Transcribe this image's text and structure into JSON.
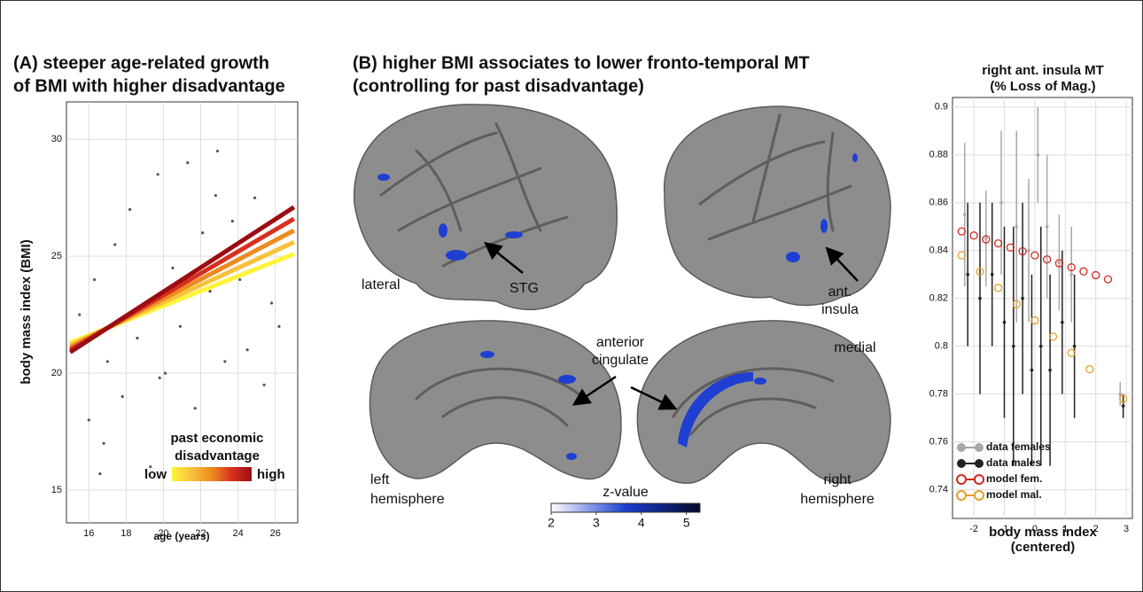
{
  "chart_data": [
    {
      "type": "line",
      "title": [
        "(A) steeper age-related growth",
        "of BMI with higher disadvantage"
      ],
      "x_label": "age (years)",
      "y_label": "body mass index (BMI)",
      "xlim": [
        14.8,
        27.2
      ],
      "ylim": [
        13.6,
        31.6
      ],
      "xticks": [
        16,
        18,
        20,
        22,
        24,
        26
      ],
      "yticks": [
        15,
        20,
        25,
        30
      ],
      "grid": true,
      "scatter": {
        "color": "#555555",
        "x": [
          15.5,
          16,
          16.3,
          16.8,
          17,
          17.4,
          17.8,
          18.2,
          18.6,
          19,
          19.3,
          19.7,
          20.1,
          20.5,
          20.9,
          21.3,
          21.7,
          22.1,
          22.5,
          22.9,
          23.3,
          23.7,
          24.1,
          24.5,
          24.9,
          25.4,
          25.8,
          26.2,
          26.6,
          16.6,
          19.8,
          22.8
        ],
        "values": [
          22.5,
          18,
          24,
          17,
          20.5,
          25.5,
          19,
          27,
          21.5,
          23,
          16,
          28.5,
          20,
          24.5,
          22,
          29,
          18.5,
          26,
          23.5,
          29.5,
          20.5,
          26.5,
          24,
          21,
          27.5,
          19.5,
          23,
          22,
          25,
          15.7,
          19.8,
          27.6
        ]
      },
      "series": [
        {
          "color": "#fff33b",
          "x": [
            15,
            27
          ],
          "values": [
            21.3,
            25.1
          ]
        },
        {
          "color": "#f6c23c",
          "x": [
            15,
            27
          ],
          "values": [
            21.2,
            25.6
          ]
        },
        {
          "color": "#ee8a1f",
          "x": [
            15,
            27
          ],
          "values": [
            21.1,
            26.1
          ]
        },
        {
          "color": "#d7301f",
          "x": [
            15,
            27
          ],
          "values": [
            21.0,
            26.6
          ]
        },
        {
          "color": "#9b0d12",
          "x": [
            15,
            27
          ],
          "values": [
            20.9,
            27.1
          ]
        }
      ],
      "legend_title": [
        "past economic",
        "disadvantage"
      ],
      "legend_low": "low",
      "legend_high": "high"
    },
    {
      "type": "image",
      "title": [
        "(B) higher BMI associates to lower fronto-temporal MT",
        "(controlling for past disadvantage)"
      ],
      "annotations": {
        "lateral": "lateral",
        "stg": "STG",
        "insula": [
          "ant.",
          "insula"
        ],
        "cingulate": [
          "anterior",
          "cingulate"
        ],
        "medial": "medial",
        "left": [
          "left",
          "hemisphere"
        ],
        "right": [
          "right",
          "hemisphere"
        ]
      },
      "colorbar": {
        "label": "z-value",
        "lim": [
          2,
          5.3
        ],
        "ticks": [
          2,
          3,
          4,
          5
        ],
        "colors": [
          "#ffffff",
          "#1a3fd0",
          "#05082a"
        ]
      }
    },
    {
      "type": "scatter",
      "title": [
        "right ant. insula MT",
        "(% Loss of Mag.)"
      ],
      "x_label": [
        "body mass index",
        "(centered)"
      ],
      "xlim": [
        -2.7,
        3.2
      ],
      "ylim": [
        0.728,
        0.904
      ],
      "xticks": [
        -2,
        -1,
        0,
        1,
        2,
        3
      ],
      "yticks": [
        0.74,
        0.76,
        0.78,
        0.8,
        0.82,
        0.84,
        0.86,
        0.88,
        0.9
      ],
      "grid": true,
      "legend": "lower left",
      "series": [
        {
          "name": "data females",
          "color": "#a8a8a8",
          "style": "bar",
          "x": [
            -2.3,
            -1.6,
            -1.1,
            -0.6,
            -0.2,
            0.1,
            0.4,
            0.8,
            1.2,
            2.8
          ],
          "values": [
            0.855,
            0.845,
            0.86,
            0.85,
            0.84,
            0.88,
            0.85,
            0.835,
            0.83,
            0.78
          ],
          "errors": [
            0.03,
            0.02,
            0.03,
            0.04,
            0.03,
            0.02,
            0.03,
            0.02,
            0.02,
            0.005
          ]
        },
        {
          "name": "data males",
          "color": "#222222",
          "style": "bar",
          "x": [
            -2.2,
            -1.8,
            -1.4,
            -1.0,
            -0.7,
            -0.4,
            -0.1,
            0.2,
            0.5,
            0.9,
            1.3,
            2.9
          ],
          "values": [
            0.83,
            0.82,
            0.83,
            0.81,
            0.8,
            0.82,
            0.79,
            0.8,
            0.79,
            0.81,
            0.8,
            0.775
          ],
          "errors": [
            0.03,
            0.04,
            0.03,
            0.04,
            0.05,
            0.04,
            0.04,
            0.05,
            0.04,
            0.03,
            0.03,
            0.005
          ]
        },
        {
          "name": "model fem.",
          "color": "#d0281e",
          "style": "ring",
          "x": [
            -2.4,
            -2.0,
            -1.6,
            -1.2,
            -0.8,
            -0.4,
            0,
            0.4,
            0.8,
            1.2,
            1.6,
            2.0,
            2.4
          ],
          "values": [
            0.848,
            0.8463,
            0.8447,
            0.843,
            0.8413,
            0.8397,
            0.838,
            0.8363,
            0.8347,
            0.833,
            0.8313,
            0.8297,
            0.828
          ]
        },
        {
          "name": "model mal.",
          "color": "#e3a12a",
          "style": "ring",
          "x": [
            -2.4,
            -1.8,
            -1.2,
            -0.6,
            0,
            0.6,
            1.2,
            1.8,
            2.9
          ],
          "values": [
            0.838,
            0.8312,
            0.8244,
            0.8176,
            0.8108,
            0.804,
            0.7972,
            0.7904,
            0.778
          ]
        }
      ]
    }
  ]
}
